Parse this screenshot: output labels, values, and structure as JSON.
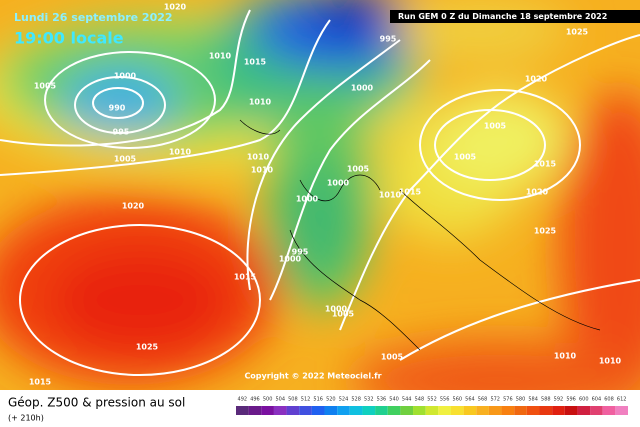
{
  "header": {
    "date": "Lundi 26 septembre 2022",
    "time": "19:00 locale",
    "run": "Run GEM 0 Z du Dimanche 18 septembre 2022"
  },
  "isobar_labels": [
    "1020",
    "1025",
    "1005",
    "1000",
    "990",
    "995",
    "1005",
    "1010",
    "1010",
    "1015",
    "1010",
    "995",
    "1000",
    "1020",
    "1005",
    "1005",
    "1015",
    "1020",
    "1010",
    "1010",
    "1005",
    "1000",
    "1000",
    "1010",
    "1015",
    "1020",
    "995",
    "1000",
    "1025",
    "1015",
    "1025",
    "1000",
    "1005",
    "1005",
    "1010",
    "1010",
    "1015"
  ],
  "copyright": "Copyright © 2022 Meteociel.fr",
  "footer": {
    "title": "Géop. Z500 & pression au sol",
    "lead": "(+ 210h)"
  },
  "legend": [
    "492",
    "496",
    "500",
    "504",
    "508",
    "512",
    "516",
    "520",
    "524",
    "528",
    "532",
    "536",
    "540",
    "544",
    "548",
    "552",
    "556",
    "560",
    "564",
    "568",
    "572",
    "576",
    "580",
    "584",
    "588",
    "592",
    "596",
    "600",
    "604",
    "608",
    "612"
  ]
}
